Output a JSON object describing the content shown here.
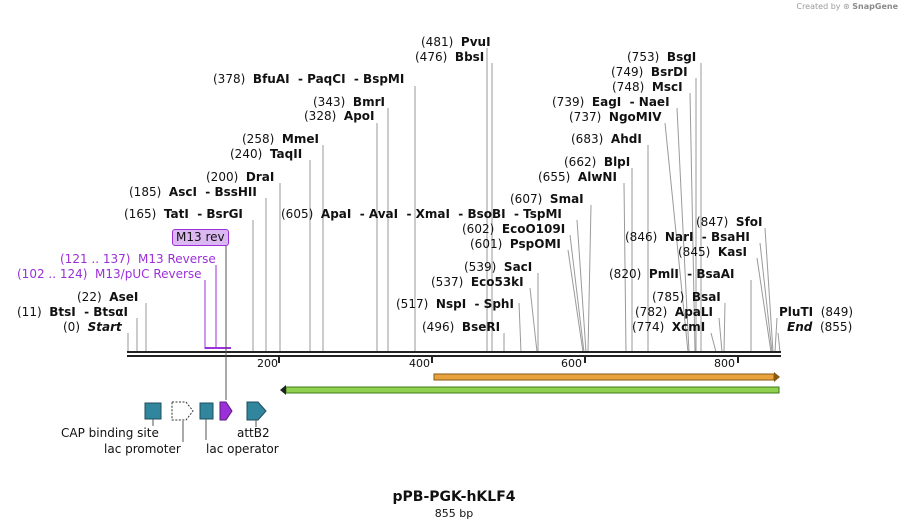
{
  "watermark": {
    "prefix": "Created by",
    "brand": "SnapGene"
  },
  "plasmid": {
    "name": "pPB-PGK-hKLF4",
    "length_label": "855 bp"
  },
  "ruler": {
    "ticks": [
      "200",
      "400",
      "600",
      "800"
    ]
  },
  "site_labels": [
    {
      "num": "(481)",
      "text": "PvuI"
    },
    {
      "num": "(476)",
      "text": "BbsI"
    },
    {
      "num": "(378)",
      "text": "BfuAI  - PaqCI  - BspMI"
    },
    {
      "num": "(343)",
      "text": "BmrI"
    },
    {
      "num": "(328)",
      "text": "ApoI"
    },
    {
      "num": "(258)",
      "text": "MmeI"
    },
    {
      "num": "(240)",
      "text": "TaqII"
    },
    {
      "num": "(200)",
      "text": "DraI"
    },
    {
      "num": "(185)",
      "text": "AscI  - BssHII"
    },
    {
      "num": "(165)",
      "text": "TatI  - BsrGI"
    },
    {
      "num": "(605)",
      "text": "ApaI  - AvaI  - XmaI  - BsoBI  - TspMI"
    },
    {
      "num": "(602)",
      "text": "EcoO109I"
    },
    {
      "num": "(607)",
      "text": "SmaI"
    },
    {
      "num": "(601)",
      "text": "PspOMI"
    },
    {
      "num": "(539)",
      "text": "SacI"
    },
    {
      "num": "(537)",
      "text": "Eco53kI"
    },
    {
      "num": "(517)",
      "text": "NspI  - SphI"
    },
    {
      "num": "(496)",
      "text": "BseRI"
    },
    {
      "num": "(22)",
      "text": "AseI"
    },
    {
      "num": "(11)",
      "text": "BtsI  - BtsαI"
    },
    {
      "num": "(0)",
      "text": "Start"
    },
    {
      "num": "(753)",
      "text": "BsgI"
    },
    {
      "num": "(749)",
      "text": "BsrDI"
    },
    {
      "num": "(748)",
      "text": "MscI"
    },
    {
      "num": "(739)",
      "text": "EagI  - NaeI"
    },
    {
      "num": "(737)",
      "text": "NgoMIV"
    },
    {
      "num": "(683)",
      "text": "AhdI"
    },
    {
      "num": "(662)",
      "text": "BlpI"
    },
    {
      "num": "(655)",
      "text": "AlwNI"
    },
    {
      "num": "(847)",
      "text": "SfoI"
    },
    {
      "num": "(846)",
      "text": "NarI  - BsaHI"
    },
    {
      "num": "(845)",
      "text": "KasI"
    },
    {
      "num": "(820)",
      "text": "PmlI  - BsaAI"
    },
    {
      "num": "(785)",
      "text": "BsaI"
    },
    {
      "num": "(782)",
      "text": "ApaLI"
    },
    {
      "num": "(774)",
      "text": "XcmI"
    },
    {
      "num": "(849)",
      "text": "PluTI"
    },
    {
      "num": "(855)",
      "text": "End"
    }
  ],
  "primers": [
    {
      "name": "M13 rev"
    },
    {
      "text": "(121 .. 137)  M13 Reverse"
    },
    {
      "text": "(102 .. 124)  M13/pUC Reverse"
    }
  ],
  "features": [
    {
      "label": "CAP binding site",
      "color": "#31859c"
    },
    {
      "label": "lac promoter",
      "color": "#ffffff"
    },
    {
      "label": "lac operator",
      "color": "#31859c"
    },
    {
      "label": "",
      "color": "#9b30d9"
    },
    {
      "label": "attB2",
      "color": "#31859c"
    }
  ],
  "orf_colors": {
    "orange": "#e8a33c",
    "green": "#8fd14f"
  }
}
